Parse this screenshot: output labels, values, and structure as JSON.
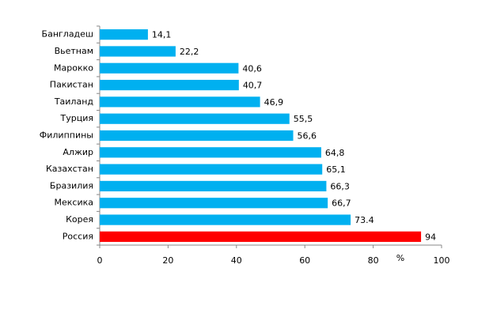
{
  "chart_data": {
    "type": "bar",
    "orientation": "horizontal",
    "categories": [
      "Бангладеш",
      "Вьетнам",
      "Марокко",
      "Пакистан",
      "Таиланд",
      "Турция",
      "Филиппины",
      "Алжир",
      "Казахстан",
      "Бразилия",
      "Мексика",
      "Корея",
      "Россия"
    ],
    "values": [
      14.1,
      22.2,
      40.6,
      40.7,
      46.9,
      55.5,
      56.6,
      64.8,
      65.1,
      66.3,
      66.7,
      73.4,
      94
    ],
    "value_labels": [
      "14,1",
      "22,2",
      "40,6",
      "40,7",
      "46,9",
      "55,5",
      "56,6",
      "64,8",
      "65,1",
      "66,3",
      "66,7",
      "73.4",
      "94"
    ],
    "colors": [
      "#00b0f0",
      "#00b0f0",
      "#00b0f0",
      "#00b0f0",
      "#00b0f0",
      "#00b0f0",
      "#00b0f0",
      "#00b0f0",
      "#00b0f0",
      "#00b0f0",
      "#00b0f0",
      "#00b0f0",
      "#ff0000"
    ],
    "x_label": "%",
    "xlim": [
      0,
      100
    ],
    "xticks": [
      0,
      20,
      40,
      60,
      80,
      100
    ]
  }
}
